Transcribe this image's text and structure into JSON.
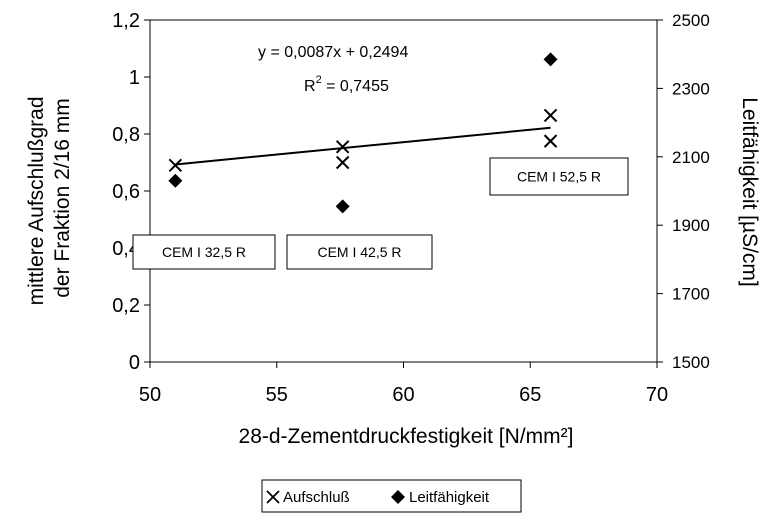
{
  "chart_data": {
    "type": "scatter",
    "xlabel": "28-d-Zementdruckfestigkeit [N/mm²]",
    "ylabel_lines": [
      "mittlere Aufschlußgrad",
      "der Fraktion 2/16 mm"
    ],
    "y2label": "Leitfähigkeit [µS/cm]",
    "xlim": [
      50,
      70
    ],
    "ylim": [
      0,
      1.2
    ],
    "y2lim": [
      1500,
      2500
    ],
    "x_ticks": [
      "50",
      "55",
      "60",
      "65",
      "70"
    ],
    "y_ticks": [
      "0",
      "0,2",
      "0,4",
      "0,6",
      "0,8",
      "1",
      "1,2"
    ],
    "y2_ticks": [
      "1500",
      "1700",
      "1900",
      "2100",
      "2300",
      "2500"
    ],
    "grid": false,
    "legend_position": "bottom",
    "series": [
      {
        "name": "Aufschluß",
        "marker": "x",
        "axis": "left",
        "color": "#000000",
        "points": [
          [
            51,
            0.69
          ],
          [
            57.6,
            0.755
          ],
          [
            57.6,
            0.7
          ],
          [
            65.8,
            0.865
          ],
          [
            65.8,
            0.775
          ]
        ]
      },
      {
        "name": "Leitfähigkeit",
        "marker": "diamond",
        "axis": "right",
        "color": "#000000",
        "points": [
          [
            51,
            2030
          ],
          [
            57.6,
            1955
          ],
          [
            65.8,
            2385
          ]
        ]
      }
    ],
    "trendline": {
      "x_range": [
        51,
        65.8
      ],
      "slope": 0.0087,
      "intercept": 0.2494,
      "equation": "y = 0,0087x + 0,2494",
      "r2_prefix": "R",
      "r2_sup": "2",
      "r2_rest": " = 0,7455"
    },
    "annotations": [
      {
        "text": "CEM I 32,5 R"
      },
      {
        "text": "CEM I 42,5 R"
      },
      {
        "text": "CEM I 52,5 R"
      }
    ]
  }
}
